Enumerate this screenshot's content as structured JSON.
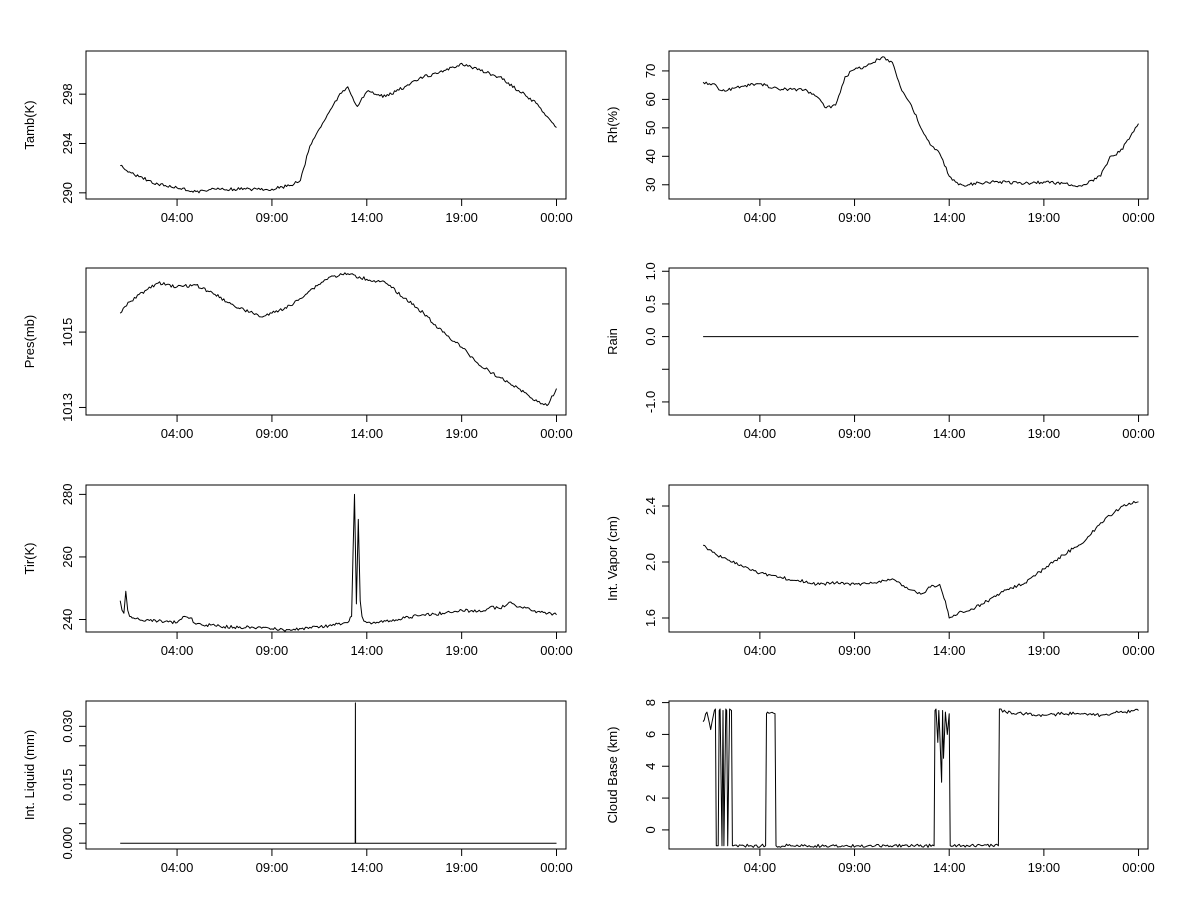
{
  "chart_data": [
    {
      "type": "line",
      "ylabel": "Tamb(K)",
      "ylim": [
        289.5,
        301.5
      ],
      "yticks": [
        290,
        294,
        298
      ],
      "xticks": [
        "04:00",
        "09:00",
        "14:00",
        "19:00",
        "00:00"
      ],
      "xlim": [
        -0.8,
        24.5
      ],
      "series": [
        {
          "x": [
            1,
            1.5,
            2,
            3,
            4,
            5,
            6,
            7,
            8,
            9,
            10,
            10.5,
            11,
            11.5,
            12,
            12.5,
            13,
            13.5,
            14,
            15,
            16,
            17,
            18,
            19,
            19.5,
            20,
            21,
            22,
            23,
            23.5,
            24
          ],
          "y": [
            292.2,
            291.7,
            291.3,
            290.7,
            290.4,
            290.1,
            290.3,
            290.3,
            290.3,
            290.3,
            290.6,
            291,
            293.8,
            295.2,
            296.5,
            297.8,
            298.6,
            297,
            298.2,
            297.8,
            298.6,
            299.4,
            299.8,
            300.5,
            300.2,
            299.9,
            299.4,
            298.3,
            297.2,
            296.2,
            295.3
          ]
        }
      ]
    },
    {
      "type": "line",
      "ylabel": "Rh(%)",
      "ylim": [
        25,
        77
      ],
      "yticks": [
        30,
        40,
        50,
        60,
        70
      ],
      "xticks": [
        "04:00",
        "09:00",
        "14:00",
        "19:00",
        "00:00"
      ],
      "xlim": [
        -0.8,
        24.5
      ],
      "series": [
        {
          "x": [
            1,
            1.5,
            2,
            3,
            4,
            5,
            6,
            6.5,
            7,
            7.5,
            8,
            8.5,
            9,
            9.5,
            10,
            10.5,
            11,
            11.5,
            12,
            12.5,
            13,
            13.5,
            14,
            14.5,
            15,
            16,
            17,
            18,
            19,
            20,
            21,
            22,
            22.5,
            23,
            23.5,
            24
          ],
          "y": [
            66,
            65.5,
            63,
            64.5,
            65.5,
            63.5,
            63.5,
            63,
            61,
            57,
            58,
            68,
            70.5,
            71.5,
            73,
            75,
            73,
            63,
            58,
            50,
            44,
            41,
            33,
            30,
            30,
            31,
            31,
            30.5,
            31,
            30.5,
            29.5,
            33,
            40,
            41.5,
            46,
            51.5
          ]
        }
      ]
    },
    {
      "type": "line",
      "ylabel": "Pres(mb)",
      "ylim": [
        1012.8,
        1016.7
      ],
      "yticks": [
        1013,
        1015
      ],
      "ytick_labels": [
        "1013",
        "1015"
      ],
      "xticks": [
        "04:00",
        "09:00",
        "14:00",
        "19:00",
        "00:00"
      ],
      "xlim": [
        -0.8,
        24.5
      ],
      "series": [
        {
          "x": [
            1,
            1.5,
            2,
            3,
            4,
            5,
            6,
            7,
            8,
            8.5,
            9,
            10,
            11,
            12,
            13,
            14,
            15,
            16,
            17,
            18,
            19,
            20,
            21,
            22,
            23,
            23.5,
            24
          ],
          "y": [
            1015.5,
            1015.8,
            1016.0,
            1016.3,
            1016.2,
            1016.25,
            1016.0,
            1015.7,
            1015.5,
            1015.4,
            1015.5,
            1015.7,
            1016.1,
            1016.45,
            1016.55,
            1016.4,
            1016.3,
            1015.9,
            1015.5,
            1015.0,
            1014.6,
            1014.1,
            1013.8,
            1013.5,
            1013.15,
            1013.05,
            1013.5
          ]
        }
      ]
    },
    {
      "type": "line",
      "ylabel": "Rain",
      "ylim": [
        -1.2,
        1.05
      ],
      "yticks": [
        -1.0,
        -0.5,
        0.0,
        0.5,
        1.0
      ],
      "ytick_labels": [
        "-1.0",
        "",
        "0.0",
        "0.5",
        "1.0"
      ],
      "xticks": [
        "04:00",
        "09:00",
        "14:00",
        "19:00",
        "00:00"
      ],
      "xlim": [
        -0.8,
        24.5
      ],
      "series": [
        {
          "x": [
            1,
            24
          ],
          "y": [
            0,
            0
          ]
        }
      ]
    },
    {
      "type": "line",
      "ylabel": "Tir(K)",
      "ylim": [
        236,
        283
      ],
      "yticks": [
        240,
        260,
        280
      ],
      "xticks": [
        "04:00",
        "09:00",
        "14:00",
        "19:00",
        "00:00"
      ],
      "xlim": [
        -0.8,
        24.5
      ],
      "series": [
        {
          "x": [
            1,
            1.1,
            1.2,
            1.3,
            1.4,
            1.5,
            1.7,
            2,
            3,
            4,
            4.4,
            4.7,
            5,
            6,
            7,
            8,
            9,
            10,
            11,
            12,
            13,
            13.2,
            13.35,
            13.45,
            13.55,
            13.65,
            13.75,
            13.85,
            14,
            15,
            16,
            17,
            18,
            19,
            20,
            20.5,
            21,
            21.5,
            22,
            23,
            24
          ],
          "y": [
            246,
            243,
            242,
            249,
            243,
            241,
            240.5,
            240,
            239.5,
            239,
            241,
            240.5,
            238.5,
            238,
            237.5,
            237.5,
            237,
            236.5,
            237.5,
            238,
            239,
            241,
            280,
            245,
            272,
            246,
            241,
            239.5,
            239,
            239.5,
            240.5,
            241.5,
            242,
            243,
            242.5,
            244,
            243.5,
            245.5,
            244,
            242.5,
            241.5
          ]
        }
      ]
    },
    {
      "type": "line",
      "ylabel": "Int. Vapor (cm)",
      "ylim": [
        1.5,
        2.55
      ],
      "yticks": [
        1.6,
        2.0,
        2.4
      ],
      "ytick_labels": [
        "1.6",
        "2.0",
        "2.4"
      ],
      "xticks": [
        "04:00",
        "09:00",
        "14:00",
        "19:00",
        "00:00"
      ],
      "xlim": [
        -0.8,
        24.5
      ],
      "series": [
        {
          "x": [
            1,
            1.5,
            2,
            3,
            4,
            5,
            6,
            7,
            8,
            9,
            10,
            11,
            11.5,
            12,
            12.5,
            13,
            13.5,
            13.8,
            14,
            14.5,
            15,
            16,
            17,
            18,
            19,
            20,
            21,
            21.5,
            22,
            22.5,
            23,
            23.5,
            24
          ],
          "y": [
            2.12,
            2.07,
            2.03,
            1.98,
            1.92,
            1.89,
            1.87,
            1.84,
            1.85,
            1.84,
            1.85,
            1.88,
            1.83,
            1.8,
            1.77,
            1.82,
            1.84,
            1.72,
            1.6,
            1.64,
            1.65,
            1.72,
            1.8,
            1.85,
            1.95,
            2.05,
            2.13,
            2.2,
            2.28,
            2.33,
            2.38,
            2.42,
            2.43
          ]
        }
      ]
    },
    {
      "type": "line",
      "ylabel": "Int. Liquid (mm)",
      "ylim": [
        -0.0015,
        0.0365
      ],
      "yticks": [
        0.0,
        0.005,
        0.01,
        0.015,
        0.02,
        0.025,
        0.03
      ],
      "ytick_labels": [
        "0.000",
        "",
        "",
        "0.015",
        "",
        "",
        "0.030"
      ],
      "xticks": [
        "04:00",
        "09:00",
        "14:00",
        "19:00",
        "00:00"
      ],
      "xlim": [
        -0.8,
        24.5
      ],
      "series": [
        {
          "x": [
            1,
            13.39,
            13.4,
            13.41,
            24
          ],
          "y": [
            0,
            0,
            0.036,
            0,
            0
          ]
        }
      ]
    },
    {
      "type": "line",
      "ylabel": "Cloud Base (km)",
      "ylim": [
        -1.2,
        8.1
      ],
      "yticks": [
        0,
        2,
        4,
        6,
        8
      ],
      "xticks": [
        "04:00",
        "09:00",
        "14:00",
        "19:00",
        "00:00"
      ],
      "xlim": [
        -0.8,
        24.5
      ],
      "series": [
        {
          "x": [
            1,
            1.2,
            1.4,
            1.6,
            1.65,
            1.7,
            1.8,
            1.85,
            1.9,
            2.0,
            2.05,
            2.1,
            2.2,
            2.25,
            2.3,
            2.4,
            2.5,
            2.55,
            2.6,
            4.3,
            4.35,
            4.4,
            4.8,
            4.85,
            13.2,
            13.25,
            13.3,
            13.4,
            13.45,
            13.5,
            13.6,
            13.65,
            13.7,
            13.8,
            13.9,
            14.0,
            14.05,
            16.6,
            16.65,
            17,
            18,
            19,
            20,
            21,
            22,
            23,
            24
          ],
          "y": [
            6.8,
            7.4,
            6.3,
            7.5,
            7.6,
            -1,
            -1,
            7.5,
            7.6,
            -1,
            7.5,
            -1,
            7.6,
            7.5,
            -1,
            7.6,
            7.5,
            -1,
            -1,
            -1,
            7.3,
            7.4,
            7.3,
            -1,
            -1,
            7.5,
            7.6,
            5.5,
            7.5,
            6.2,
            3.0,
            7.5,
            4.5,
            7.4,
            6.0,
            7.3,
            -1,
            -1,
            7.6,
            7.4,
            7.3,
            7.2,
            7.3,
            7.3,
            7.2,
            7.4,
            7.5
          ]
        }
      ]
    }
  ]
}
